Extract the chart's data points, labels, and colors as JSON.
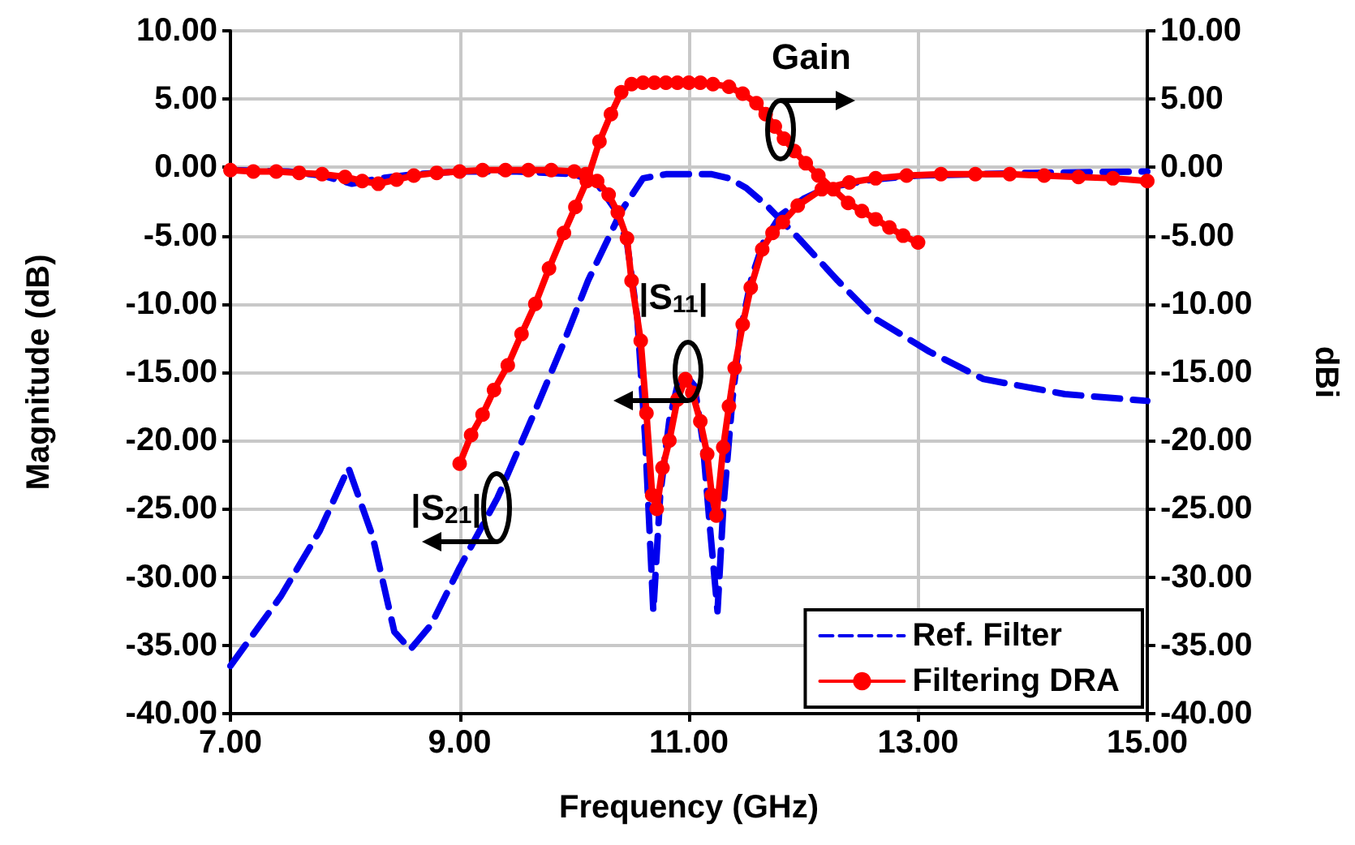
{
  "chart_data": {
    "type": "line",
    "xlabel": "Frequency (GHz)",
    "ylabel": "Magnitude (dB)",
    "y2label": "dBi",
    "xlim": [
      7,
      15
    ],
    "xticks": [
      {
        "value": 7,
        "label": "7.00"
      },
      {
        "value": 9,
        "label": "9.00"
      },
      {
        "value": 11,
        "label": "11.00"
      },
      {
        "value": 13,
        "label": "13.00"
      },
      {
        "value": 15,
        "label": "15.00"
      }
    ],
    "ylim": [
      -40,
      10
    ],
    "yticks": [
      {
        "value": -40,
        "label": "-40.00"
      },
      {
        "value": -35,
        "label": "-35.00"
      },
      {
        "value": -30,
        "label": "-30.00"
      },
      {
        "value": -25,
        "label": "-25.00"
      },
      {
        "value": -20,
        "label": "-20.00"
      },
      {
        "value": -15,
        "label": "-15.00"
      },
      {
        "value": -10,
        "label": "-10.00"
      },
      {
        "value": -5,
        "label": "-5.00"
      },
      {
        "value": 0,
        "label": "0.00"
      },
      {
        "value": 5,
        "label": "5.00"
      },
      {
        "value": 10,
        "label": "10.00"
      }
    ],
    "y2lim": [
      -40,
      10
    ],
    "y2ticks": [
      {
        "value": -40,
        "label": "-40.00"
      },
      {
        "value": -35,
        "label": "-35.00"
      },
      {
        "value": -30,
        "label": "-30.00"
      },
      {
        "value": -25,
        "label": "-25.00"
      },
      {
        "value": -20,
        "label": "-20.00"
      },
      {
        "value": -15,
        "label": "-15.00"
      },
      {
        "value": -10,
        "label": "-10.00"
      },
      {
        "value": -5,
        "label": "-5.00"
      },
      {
        "value": 0,
        "label": "0.00"
      },
      {
        "value": 5,
        "label": "5.00"
      },
      {
        "value": 10,
        "label": "10.00"
      }
    ],
    "grid": true,
    "legend": "bottom right",
    "annotations": [
      "Gain",
      "|S$_{11}$|",
      "|S$_{21}$|"
    ],
    "series": [
      {
        "name": "Ref. Filter",
        "color": "#0000ee",
        "line_style": "dashed",
        "marker": "none",
        "x": [
          7.0,
          7.44,
          7.78,
          8.03,
          8.24,
          8.43,
          8.57,
          8.75,
          9.0,
          9.33,
          9.66,
          9.9,
          10.12,
          10.32,
          10.41,
          10.6,
          10.8,
          11.0,
          11.2,
          11.35,
          11.5,
          11.68,
          11.96,
          12.3,
          12.63,
          13.1,
          13.57,
          14.28,
          15.0
        ],
        "values": [
          -36.5,
          -31.4,
          -26.6,
          -22.0,
          -27.0,
          -34.0,
          -35.3,
          -33.5,
          -29.3,
          -24.2,
          -17.8,
          -13.0,
          -8.3,
          -4.8,
          -3.2,
          -0.8,
          -0.5,
          -0.5,
          -0.5,
          -0.8,
          -1.5,
          -2.8,
          -5.2,
          -8.3,
          -11.1,
          -13.5,
          -15.5,
          -16.6,
          -17.1
        ]
      },
      {
        "color": "#0000ee",
        "line_style": "dashed",
        "marker": "none",
        "x": [
          7.0,
          7.5,
          7.8,
          8.06,
          8.3,
          8.6,
          9.0,
          9.5,
          10.0,
          10.2,
          10.35,
          10.46,
          10.55,
          10.62,
          10.69,
          10.75,
          10.83,
          10.9,
          10.97,
          11.05,
          11.12,
          11.18,
          11.25,
          11.3,
          11.38,
          11.45,
          11.55,
          11.65,
          11.8,
          12.0,
          12.2,
          12.6,
          13.0,
          14.0,
          15.0
        ],
        "values": [
          -0.2,
          -0.3,
          -0.6,
          -1.2,
          -0.8,
          -0.5,
          -0.3,
          -0.3,
          -0.5,
          -1.2,
          -3.0,
          -5.5,
          -11,
          -20,
          -32.5,
          -24,
          -18.5,
          -16,
          -15.2,
          -16,
          -20,
          -26,
          -32.5,
          -25,
          -17,
          -12,
          -8,
          -5.5,
          -3.5,
          -2.3,
          -1.5,
          -0.9,
          -0.6,
          -0.4,
          -0.3
        ]
      },
      {
        "name": "Filtering DRA",
        "color": "#ff0000",
        "line_style": "solid",
        "marker": "circle",
        "x": [
          7.0,
          7.2,
          7.4,
          7.6,
          7.8,
          8.0,
          8.15,
          8.29,
          8.45,
          8.6,
          8.8,
          9.0,
          9.2,
          9.4,
          9.6,
          9.8,
          10.0,
          10.1,
          10.2,
          10.3,
          10.38,
          10.46,
          10.5,
          10.58,
          10.63,
          10.68,
          10.72,
          10.77,
          10.83,
          10.9,
          10.97,
          11.03,
          11.1,
          11.16,
          11.2,
          11.24,
          11.3,
          11.35,
          11.4,
          11.47,
          11.54,
          11.64,
          11.73,
          11.82,
          11.95,
          12.16,
          12.4,
          12.63,
          12.9,
          13.2,
          13.5,
          13.8,
          14.1,
          14.4,
          14.7,
          15.0
        ],
        "values": [
          -0.2,
          -0.3,
          -0.3,
          -0.4,
          -0.5,
          -0.7,
          -1.0,
          -1.2,
          -0.9,
          -0.6,
          -0.4,
          -0.3,
          -0.2,
          -0.2,
          -0.2,
          -0.2,
          -0.3,
          -0.5,
          -1.0,
          -2.0,
          -3.3,
          -5.2,
          -8.3,
          -12.7,
          -18,
          -24,
          -25,
          -22,
          -20,
          -17,
          -15.5,
          -16.5,
          -18.6,
          -21,
          -24,
          -25.5,
          -20.5,
          -17.5,
          -14.7,
          -11.5,
          -8.8,
          -6.0,
          -4.8,
          -4.0,
          -2.8,
          -1.6,
          -1.1,
          -0.8,
          -0.6,
          -0.5,
          -0.5,
          -0.5,
          -0.6,
          -0.7,
          -0.8,
          -1.0
        ]
      },
      {
        "color": "#ff0000",
        "line_style": "solid",
        "marker": "circle",
        "axis": "y2",
        "x": [
          9.0,
          9.1,
          9.2,
          9.3,
          9.42,
          9.54,
          9.66,
          9.78,
          9.91,
          10.01,
          10.11,
          10.22,
          10.32,
          10.41,
          10.5,
          10.6,
          10.7,
          10.8,
          10.9,
          11.0,
          11.1,
          11.21,
          11.35,
          11.47,
          11.59,
          11.67,
          11.75,
          11.83,
          11.92,
          12.02,
          12.13,
          12.26,
          12.39,
          12.51,
          12.63,
          12.75,
          12.87,
          13.0
        ],
        "values": [
          -21.7,
          -19.6,
          -18.1,
          -16.3,
          -14.5,
          -12.2,
          -10,
          -7.4,
          -4.8,
          -2.9,
          -1.0,
          1.9,
          3.9,
          5.5,
          6.1,
          6.2,
          6.2,
          6.2,
          6.2,
          6.2,
          6.2,
          6.1,
          5.9,
          5.4,
          4.7,
          3.9,
          3.0,
          2.1,
          1.2,
          0.3,
          -0.6,
          -1.6,
          -2.6,
          -3.2,
          -3.8,
          -4.4,
          -5.0,
          -5.5
        ]
      }
    ]
  }
}
